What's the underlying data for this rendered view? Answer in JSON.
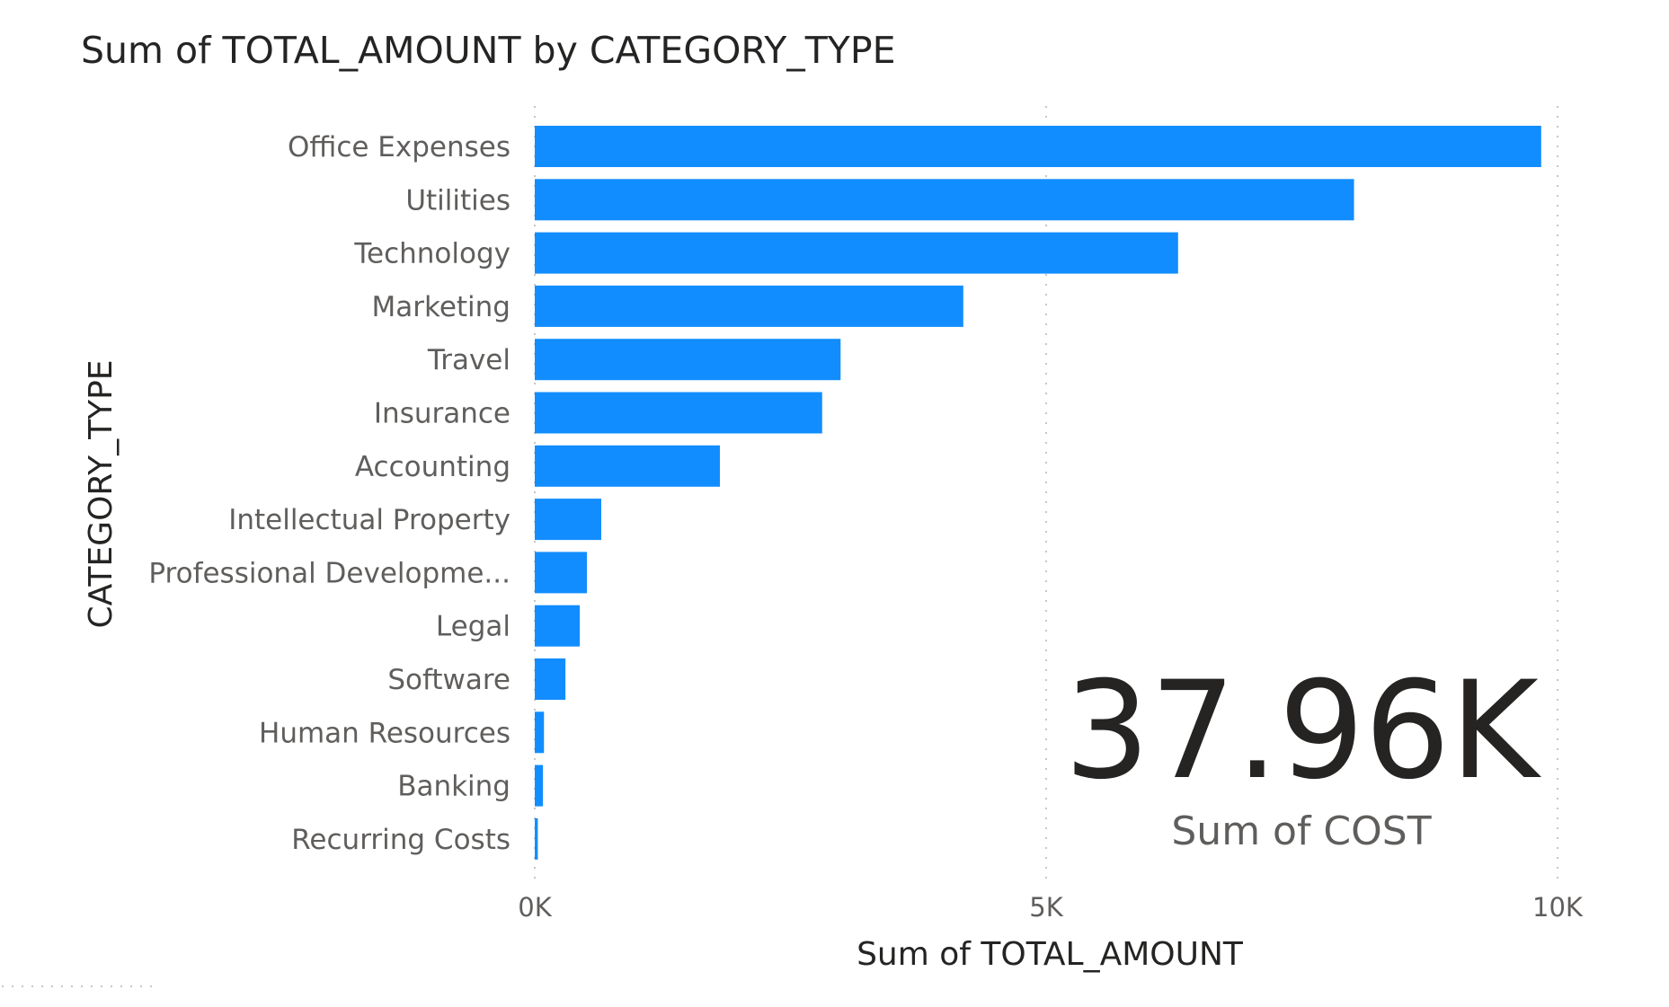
{
  "colors": {
    "bar": "#118dff",
    "text_dark": "#252423",
    "text_muted": "#605e5c",
    "grid": "#c8c6c4"
  },
  "chart_data": {
    "type": "bar",
    "orientation": "horizontal",
    "title": "Sum of TOTAL_AMOUNT by CATEGORY_TYPE",
    "xlabel": "Sum of TOTAL_AMOUNT",
    "ylabel": "CATEGORY_TYPE",
    "xlim": [
      0,
      10000
    ],
    "x_ticks": [
      0,
      5000,
      10000
    ],
    "x_tick_labels": [
      "0K",
      "5K",
      "10K"
    ],
    "grid": "vertical dotted",
    "categories": [
      "Office Expenses",
      "Utilities",
      "Technology",
      "Marketing",
      "Travel",
      "Insurance",
      "Accounting",
      "Intellectual Property",
      "Professional Developme...",
      "Legal",
      "Software",
      "Human Resources",
      "Banking",
      "Recurring Costs"
    ],
    "values": [
      9840,
      8010,
      6290,
      4190,
      2990,
      2810,
      1810,
      650,
      510,
      440,
      300,
      90,
      80,
      30
    ]
  },
  "card": {
    "value": "37.96K",
    "label": "Sum of COST"
  }
}
